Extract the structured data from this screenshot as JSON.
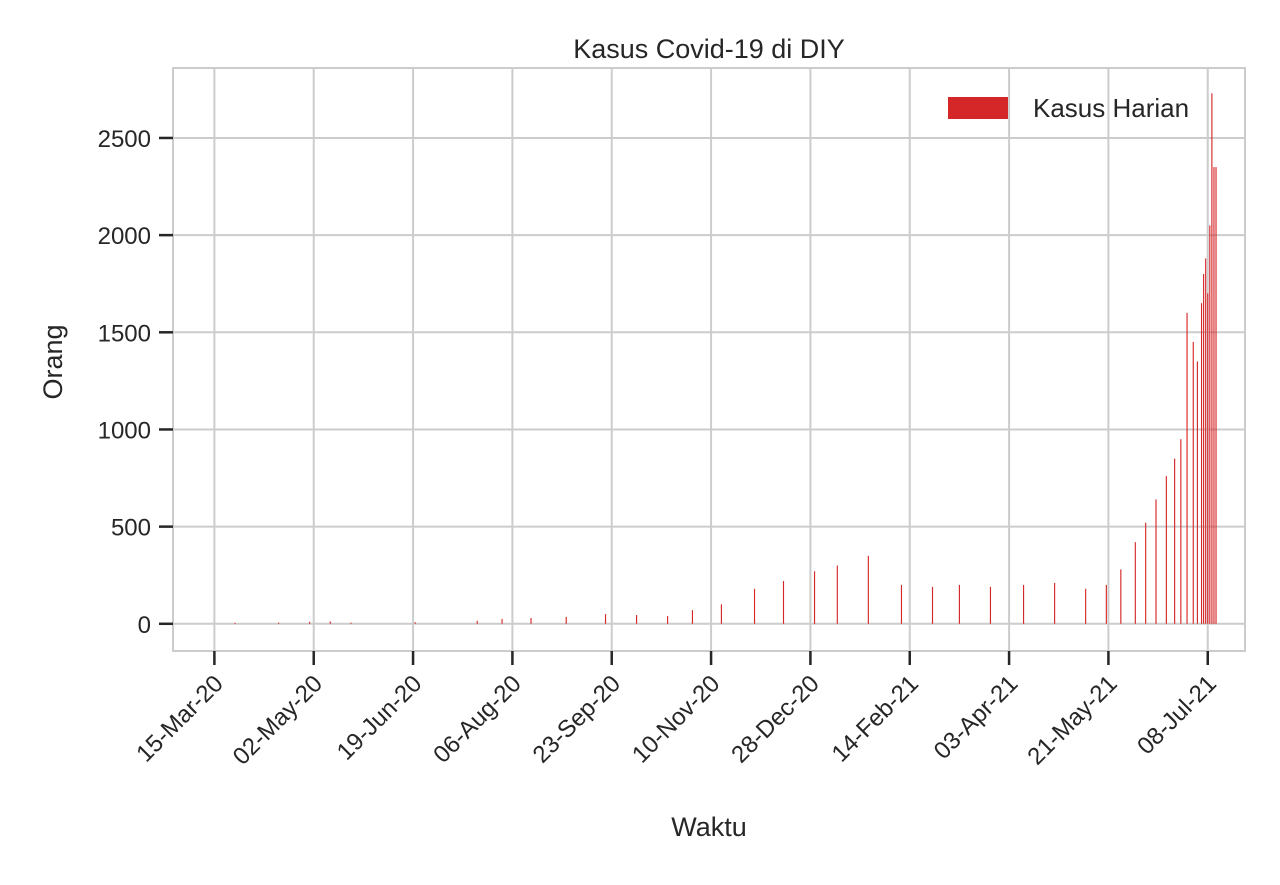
{
  "chart_data": {
    "type": "bar",
    "title": "Kasus Covid-19 di DIY",
    "xlabel": "Waktu",
    "ylabel": "Orang",
    "x_range": [
      "2020-02-24",
      "2021-07-26"
    ],
    "ylim": [
      -140,
      2860
    ],
    "yticks": [
      0,
      500,
      1000,
      1500,
      2000,
      2500
    ],
    "xticks": [
      {
        "date": "2020-03-15",
        "label": "15-Mar-20"
      },
      {
        "date": "2020-05-02",
        "label": "02-May-20"
      },
      {
        "date": "2020-06-19",
        "label": "19-Jun-20"
      },
      {
        "date": "2020-08-06",
        "label": "06-Aug-20"
      },
      {
        "date": "2020-09-23",
        "label": "23-Sep-20"
      },
      {
        "date": "2020-11-10",
        "label": "10-Nov-20"
      },
      {
        "date": "2020-12-28",
        "label": "28-Dec-20"
      },
      {
        "date": "2021-02-14",
        "label": "14-Feb-21"
      },
      {
        "date": "2021-04-03",
        "label": "03-Apr-21"
      },
      {
        "date": "2021-05-21",
        "label": "21-May-21"
      },
      {
        "date": "2021-07-08",
        "label": "08-Jul-21"
      }
    ],
    "grid": true,
    "legend_position": "top-right",
    "series": [
      {
        "name": "Kasus Harian",
        "color": "#d62728",
        "dates": [
          "2020-03-25",
          "2020-04-15",
          "2020-04-30",
          "2020-05-10",
          "2020-05-20",
          "2020-06-20",
          "2020-07-20",
          "2020-08-01",
          "2020-08-15",
          "2020-09-01",
          "2020-09-20",
          "2020-10-05",
          "2020-10-20",
          "2020-11-01",
          "2020-11-15",
          "2020-12-01",
          "2020-12-15",
          "2020-12-30",
          "2021-01-10",
          "2021-01-25",
          "2021-02-10",
          "2021-02-25",
          "2021-03-10",
          "2021-03-25",
          "2021-04-10",
          "2021-04-25",
          "2021-05-10",
          "2021-05-20",
          "2021-05-27",
          "2021-06-03",
          "2021-06-08",
          "2021-06-13",
          "2021-06-18",
          "2021-06-22",
          "2021-06-25",
          "2021-06-28",
          "2021-07-01",
          "2021-07-03",
          "2021-07-05",
          "2021-07-06",
          "2021-07-07",
          "2021-07-08",
          "2021-07-09",
          "2021-07-10",
          "2021-07-11",
          "2021-07-12"
        ],
        "values": [
          5,
          6,
          10,
          12,
          6,
          8,
          15,
          25,
          30,
          35,
          50,
          45,
          40,
          70,
          100,
          180,
          220,
          270,
          300,
          350,
          200,
          190,
          200,
          190,
          200,
          210,
          180,
          200,
          280,
          420,
          520,
          640,
          760,
          850,
          950,
          1600,
          1450,
          1350,
          1650,
          1800,
          1880,
          1700,
          2050,
          2730,
          2350,
          2350
        ]
      }
    ]
  }
}
